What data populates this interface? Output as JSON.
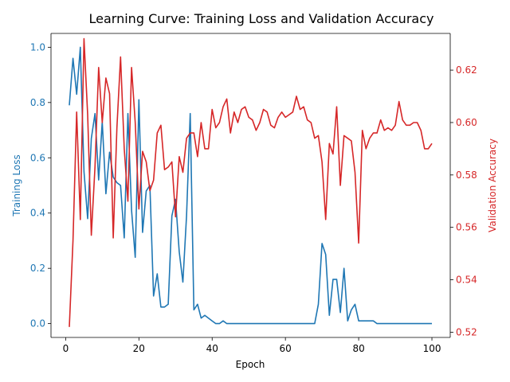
{
  "chart_data": {
    "type": "line",
    "title": "Learning Curve: Training Loss and Validation Accuracy",
    "xlabel": "Epoch",
    "ylabel_left": "Training Loss",
    "ylabel_right": "Validation Accuracy",
    "xlim": [
      -4,
      105
    ],
    "ylim_left": [
      -0.05,
      1.05
    ],
    "ylim_right": [
      0.518,
      0.634
    ],
    "x_ticks": [
      0,
      20,
      40,
      60,
      80,
      100
    ],
    "y_ticks_left": [
      0.0,
      0.2,
      0.4,
      0.6,
      0.8,
      1.0
    ],
    "y_ticks_right": [
      0.52,
      0.54,
      0.56,
      0.58,
      0.6,
      0.62
    ],
    "x_tick_labels": [
      "0",
      "20",
      "40",
      "60",
      "80",
      "100"
    ],
    "y_tick_labels_left": [
      "0.0",
      "0.2",
      "0.4",
      "0.6",
      "0.8",
      "1.0"
    ],
    "y_tick_labels_right": [
      "0.52",
      "0.54",
      "0.56",
      "0.58",
      "0.60",
      "0.62"
    ],
    "grid": false,
    "colors": {
      "left_axis": "#1f77b4",
      "right_axis": "#d62728"
    },
    "x": [
      1,
      2,
      3,
      4,
      5,
      6,
      7,
      8,
      9,
      10,
      11,
      12,
      13,
      14,
      15,
      16,
      17,
      18,
      19,
      20,
      21,
      22,
      23,
      24,
      25,
      26,
      27,
      28,
      29,
      30,
      31,
      32,
      33,
      34,
      35,
      36,
      37,
      38,
      39,
      40,
      41,
      42,
      43,
      44,
      45,
      46,
      47,
      48,
      49,
      50,
      51,
      52,
      53,
      54,
      55,
      56,
      57,
      58,
      59,
      60,
      61,
      62,
      63,
      64,
      65,
      66,
      67,
      68,
      69,
      70,
      71,
      72,
      73,
      74,
      75,
      76,
      77,
      78,
      79,
      80,
      81,
      82,
      83,
      84,
      85,
      86,
      87,
      88,
      89,
      90,
      91,
      92,
      93,
      94,
      95,
      96,
      97,
      98,
      99,
      100
    ],
    "series": [
      {
        "axis": "left",
        "color": "#1f77b4",
        "values": [
          0.79,
          0.96,
          0.83,
          1.0,
          0.55,
          0.38,
          0.67,
          0.76,
          0.52,
          0.73,
          0.47,
          0.62,
          0.53,
          0.51,
          0.5,
          0.31,
          0.76,
          0.41,
          0.24,
          0.81,
          0.33,
          0.48,
          0.5,
          0.1,
          0.18,
          0.06,
          0.06,
          0.07,
          0.39,
          0.45,
          0.26,
          0.15,
          0.39,
          0.76,
          0.05,
          0.07,
          0.02,
          0.03,
          0.02,
          0.01,
          0.0,
          0.0,
          0.01,
          0.0,
          0.0,
          0.0,
          0.0,
          0.0,
          0.0,
          0.0,
          0.0,
          0.0,
          0.0,
          0.0,
          0.0,
          0.0,
          0.0,
          0.0,
          0.0,
          0.0,
          0.0,
          0.0,
          0.0,
          0.0,
          0.0,
          0.0,
          0.0,
          0.0,
          0.07,
          0.29,
          0.25,
          0.03,
          0.16,
          0.16,
          0.04,
          0.2,
          0.01,
          0.05,
          0.07,
          0.01,
          0.01,
          0.01,
          0.01,
          0.01,
          0.0,
          0.0,
          0.0,
          0.0,
          0.0,
          0.0,
          0.0,
          0.0,
          0.0,
          0.0,
          0.0,
          0.0,
          0.0,
          0.0,
          0.0,
          0.0
        ]
      },
      {
        "axis": "right",
        "color": "#d62728",
        "values": [
          0.522,
          0.555,
          0.604,
          0.563,
          0.632,
          0.603,
          0.557,
          0.583,
          0.621,
          0.6,
          0.617,
          0.611,
          0.556,
          0.598,
          0.625,
          0.59,
          0.57,
          0.621,
          0.6,
          0.567,
          0.589,
          0.585,
          0.574,
          0.578,
          0.596,
          0.599,
          0.582,
          0.583,
          0.585,
          0.564,
          0.587,
          0.581,
          0.594,
          0.596,
          0.596,
          0.587,
          0.6,
          0.59,
          0.59,
          0.605,
          0.598,
          0.6,
          0.606,
          0.609,
          0.596,
          0.604,
          0.6,
          0.605,
          0.606,
          0.602,
          0.601,
          0.597,
          0.6,
          0.605,
          0.604,
          0.599,
          0.598,
          0.602,
          0.604,
          0.602,
          0.603,
          0.604,
          0.61,
          0.605,
          0.606,
          0.601,
          0.6,
          0.594,
          0.595,
          0.585,
          0.563,
          0.592,
          0.588,
          0.606,
          0.576,
          0.595,
          0.594,
          0.593,
          0.581,
          0.554,
          0.597,
          0.59,
          0.594,
          0.596,
          0.596,
          0.601,
          0.597,
          0.598,
          0.597,
          0.599,
          0.608,
          0.601,
          0.599,
          0.599,
          0.6,
          0.6,
          0.597,
          0.59,
          0.59,
          0.592
        ]
      }
    ]
  }
}
